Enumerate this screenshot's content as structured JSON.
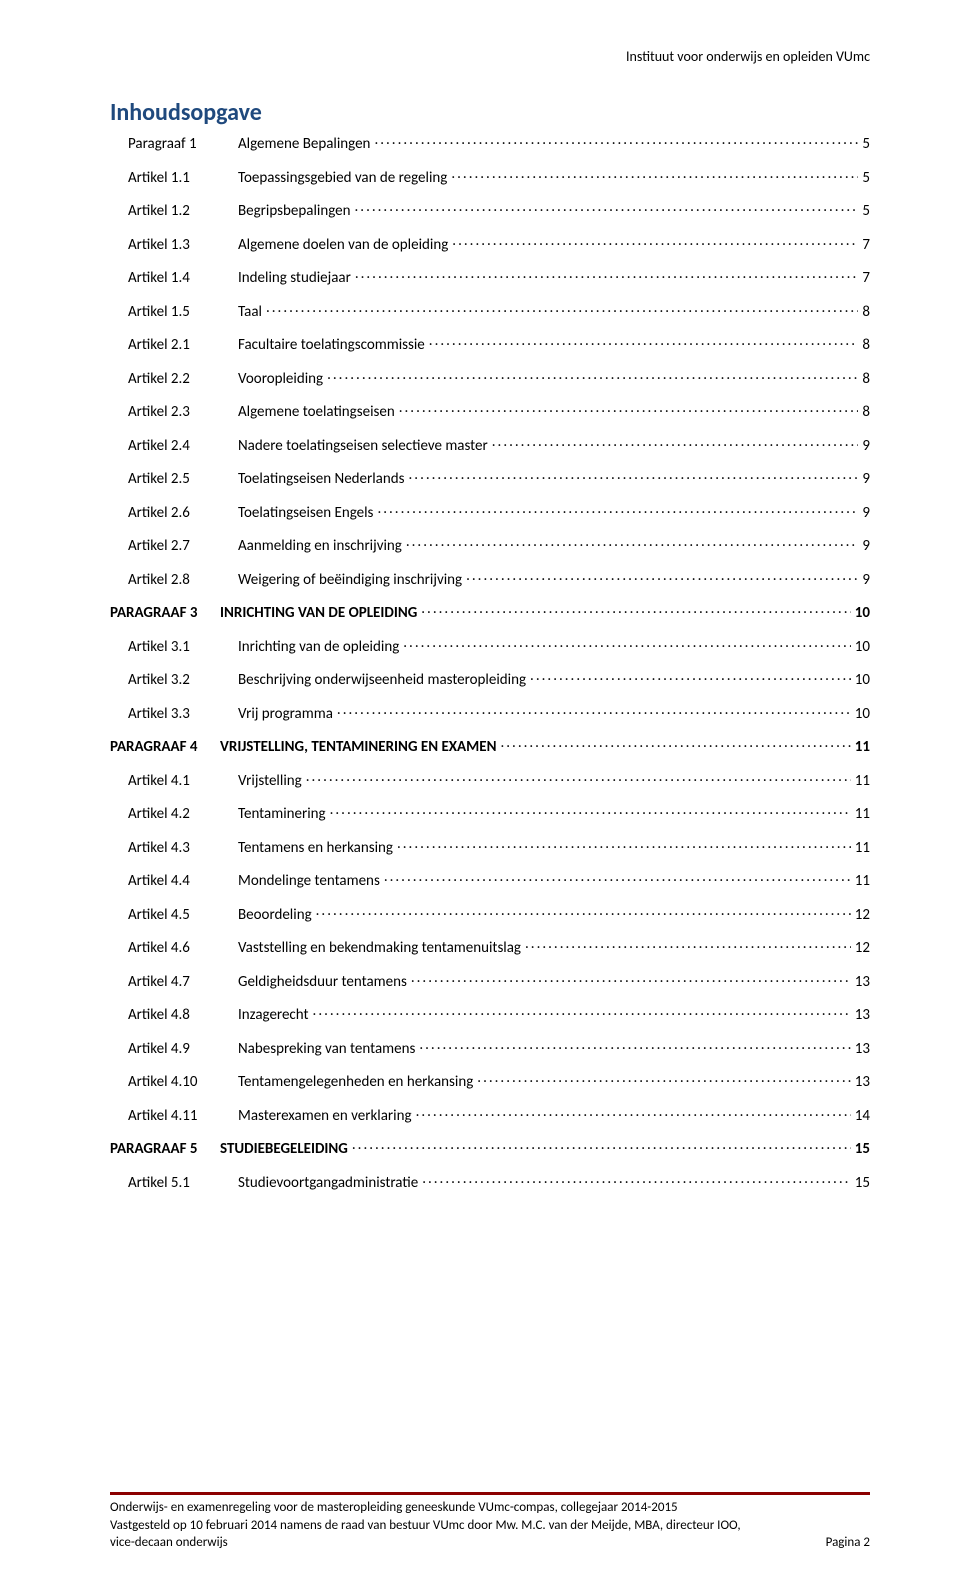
{
  "header": {
    "institute": "Instituut voor onderwijs en opleiden VUmc"
  },
  "title": "Inhoudsopgave",
  "toc": [
    {
      "label": "Paragraaf 1",
      "title": "Algemene Bepalingen",
      "page": "5",
      "style": "first"
    },
    {
      "label": "Artikel 1.1",
      "title": "Toepassingsgebied van de regeling",
      "page": "5",
      "style": "item"
    },
    {
      "label": "Artikel 1.2",
      "title": "Begripsbepalingen",
      "page": "5",
      "style": "item"
    },
    {
      "label": "Artikel 1.3",
      "title": "Algemene doelen van de opleiding",
      "page": "7",
      "style": "item"
    },
    {
      "label": "Artikel 1.4",
      "title": "Indeling studiejaar",
      "page": "7",
      "style": "item"
    },
    {
      "label": "Artikel 1.5",
      "title": "Taal",
      "page": "8",
      "style": "item"
    },
    {
      "label": "Artikel 2.1",
      "title": "Facultaire toelatingscommissie",
      "page": "8",
      "style": "item"
    },
    {
      "label": "Artikel 2.2",
      "title": "Vooropleiding",
      "page": "8",
      "style": "item"
    },
    {
      "label": "Artikel 2.3",
      "title": "Algemene  toelatingseisen",
      "page": "8",
      "style": "item"
    },
    {
      "label": "Artikel 2.4",
      "title": "Nadere toelatingseisen selectieve master",
      "page": "9",
      "style": "item"
    },
    {
      "label": "Artikel 2.5",
      "title": "Toelatingseisen Nederlands",
      "page": "9",
      "style": "item"
    },
    {
      "label": "Artikel 2.6",
      "title": "Toelatingseisen Engels",
      "page": "9",
      "style": "item"
    },
    {
      "label": "Artikel 2.7",
      "title": "Aanmelding en inschrijving",
      "page": "9",
      "style": "item"
    },
    {
      "label": "Artikel 2.8",
      "title": "Weigering of beëindiging inschrijving",
      "page": "9",
      "style": "item"
    },
    {
      "label": "PARAGRAAF 3",
      "title": "INRICHTING VAN DE OPLEIDING",
      "page": "10",
      "style": "section"
    },
    {
      "label": "Artikel 3.1",
      "title": "Inrichting van de opleiding",
      "page": "10",
      "style": "item"
    },
    {
      "label": "Artikel 3.2",
      "title": "Beschrijving onderwijseenheid masteropleiding",
      "page": "10",
      "style": "item"
    },
    {
      "label": "Artikel 3.3",
      "title": "Vrij programma",
      "page": "10",
      "style": "item"
    },
    {
      "label": "PARAGRAAF 4",
      "title": "VRIJSTELLING, TENTAMINERING EN EXAMEN",
      "page": "11",
      "style": "section"
    },
    {
      "label": "Artikel 4.1",
      "title": "Vrijstelling",
      "page": "11",
      "style": "item"
    },
    {
      "label": "Artikel 4.2",
      "title": "Tentaminering",
      "page": "11",
      "style": "item"
    },
    {
      "label": "Artikel 4.3",
      "title": "Tentamens en herkansing",
      "page": "11",
      "style": "item"
    },
    {
      "label": "Artikel 4.4",
      "title": "Mondelinge tentamens",
      "page": "11",
      "style": "item"
    },
    {
      "label": "Artikel 4.5",
      "title": "Beoordeling",
      "page": "12",
      "style": "item"
    },
    {
      "label": "Artikel 4.6",
      "title": "Vaststelling en bekendmaking tentamenuitslag",
      "page": "12",
      "style": "item"
    },
    {
      "label": "Artikel 4.7",
      "title": "Geldigheidsduur tentamens",
      "page": "13",
      "style": "item"
    },
    {
      "label": "Artikel 4.8",
      "title": "Inzagerecht",
      "page": "13",
      "style": "item"
    },
    {
      "label": "Artikel 4.9",
      "title": "Nabespreking van tentamens",
      "page": "13",
      "style": "item"
    },
    {
      "label": "Artikel 4.10",
      "title": "Tentamengelegenheden en herkansing",
      "page": "13",
      "style": "item"
    },
    {
      "label": "Artikel 4.11",
      "title": "Masterexamen en verklaring",
      "page": "14",
      "style": "item"
    },
    {
      "label": "PARAGRAAF 5",
      "title": "STUDIEBEGELEIDING",
      "page": "15",
      "style": "section"
    },
    {
      "label": "Artikel 5.1",
      "title": "Studievoortgangadministratie",
      "page": "15",
      "style": "item"
    }
  ],
  "footer": {
    "line1": "Onderwijs- en examenregeling voor de masteropleiding geneeskunde VUmc-compas, collegejaar 2014-2015",
    "line2": "Vastgesteld op 10 februari 2014 namens de raad van bestuur VUmc door Mw. M.C. van der Meijde, MBA, directeur IOO,",
    "line3_left": "vice-decaan onderwijs",
    "line3_right": "Pagina 2",
    "rule_color": "#8b0000"
  },
  "colors": {
    "title": "#1f497d",
    "text": "#000000",
    "background": "#ffffff"
  }
}
